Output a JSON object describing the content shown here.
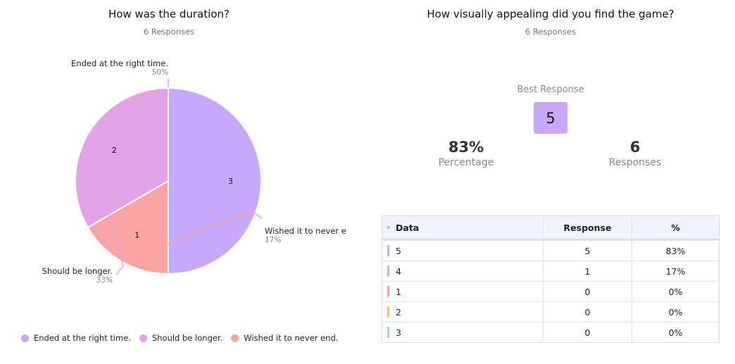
{
  "left": {
    "title": "How was the duration?",
    "subtitle": "6 Responses"
  },
  "chart_data": {
    "type": "pie",
    "title": "How was the duration?",
    "subtitle": "6 Responses",
    "slices": [
      {
        "label": "Ended at the right time.",
        "callout": "Ended at the right time.",
        "value": 3,
        "value_label": "3",
        "percent_label": "50%",
        "color": "#c7a9fb"
      },
      {
        "label": "Wished it to never end.",
        "callout": "Wished it to never e",
        "value": 1,
        "value_label": "1",
        "percent_label": "17%",
        "color": "#f9a3a3"
      },
      {
        "label": "Should be longer.",
        "callout": "Should be longer.",
        "value": 2,
        "value_label": "2",
        "percent_label": "33%",
        "color": "#e3a1e6"
      }
    ],
    "legend_position": "bottom",
    "legend": [
      {
        "label": "Ended at the right time.",
        "color": "#c7a9fb"
      },
      {
        "label": "Should be longer.",
        "color": "#e3a1e6"
      },
      {
        "label": "Wished it to never end.",
        "color": "#f9a3a3"
      }
    ]
  },
  "right": {
    "title": "How visually appealing did you find the game?",
    "subtitle": "6 Responses",
    "best_label": "Best Response",
    "best_value": "5",
    "percentage_value": "83%",
    "percentage_label": "Percentage",
    "responses_value": "6",
    "responses_label": "Responses",
    "table": {
      "headers": [
        "Data",
        "Response",
        "%"
      ],
      "rows": [
        {
          "data": "5",
          "response": "5",
          "percent": "83%",
          "color": "#c7a9fb"
        },
        {
          "data": "4",
          "response": "1",
          "percent": "17%",
          "color": "#e3a1e6"
        },
        {
          "data": "1",
          "response": "0",
          "percent": "0%",
          "color": "#f9a3a3"
        },
        {
          "data": "2",
          "response": "0",
          "percent": "0%",
          "color": "#f7c35c"
        },
        {
          "data": "3",
          "response": "0",
          "percent": "0%",
          "color": "#a4dcb3"
        }
      ]
    }
  }
}
